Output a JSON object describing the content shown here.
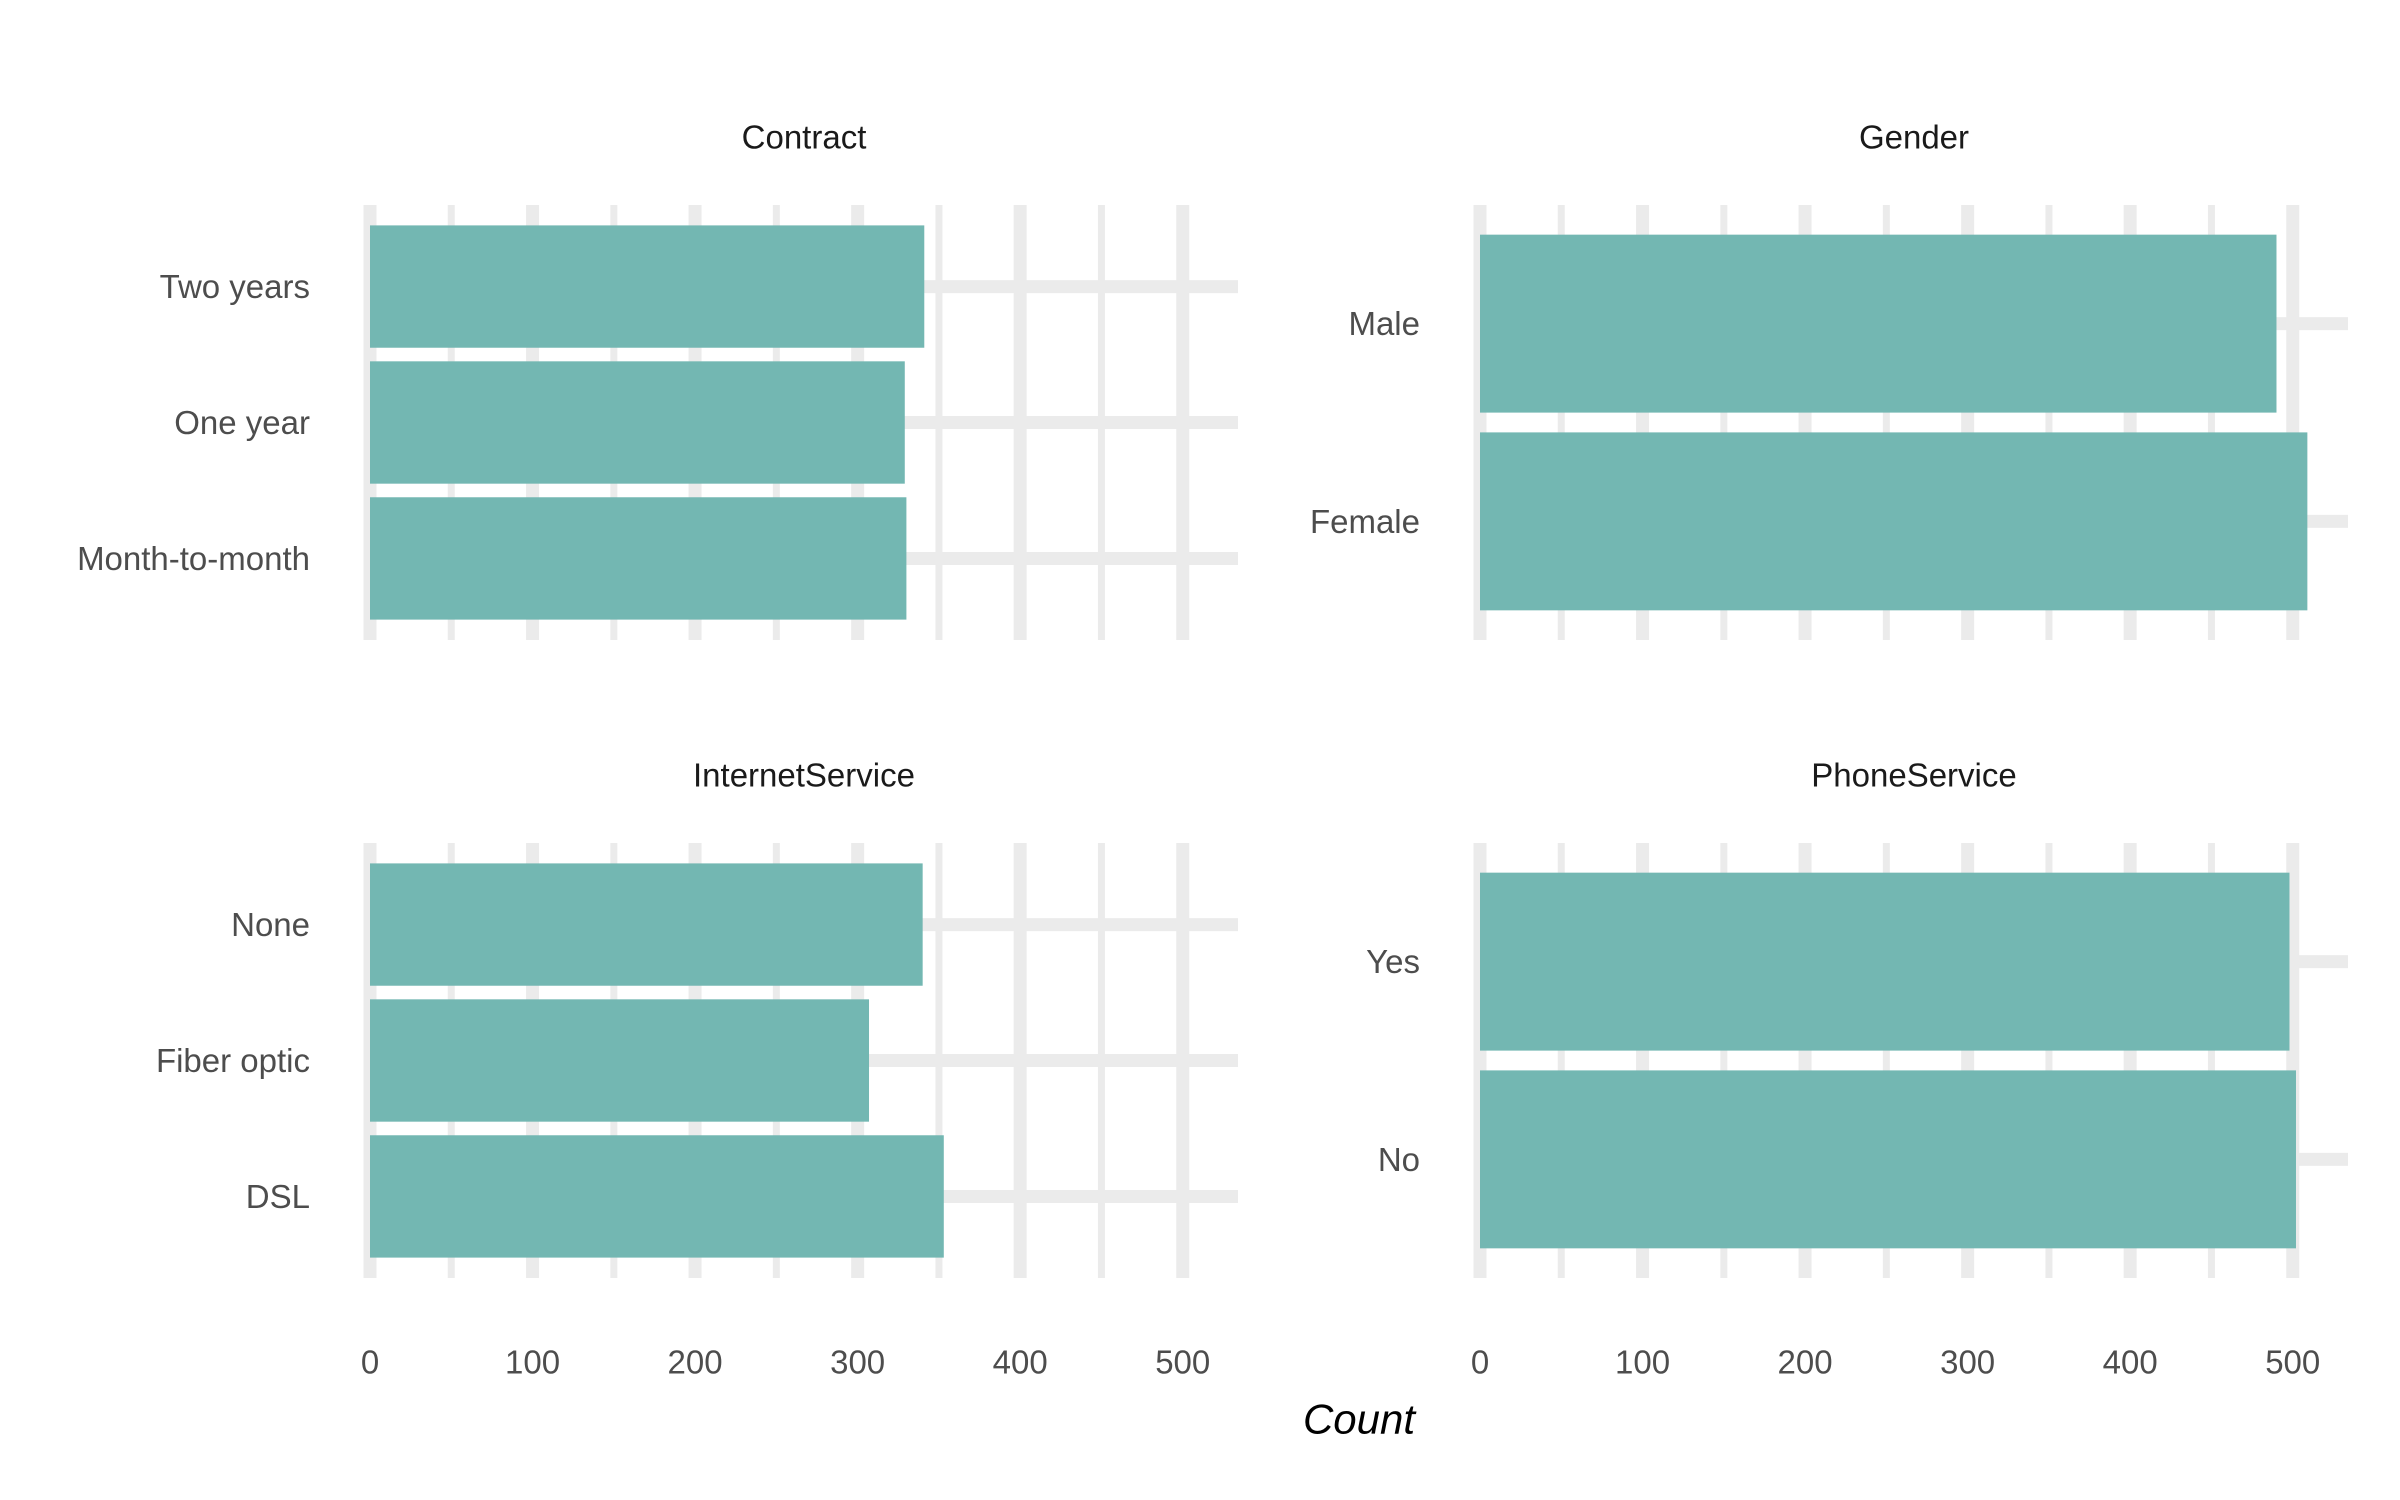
{
  "chart_data": {
    "type": "bar",
    "orientation": "horizontal",
    "layout": "facet-grid-2x2",
    "xlabel": "Count",
    "ylabel": "",
    "xlim": [
      0,
      534
    ],
    "x_ticks": [
      0,
      100,
      200,
      300,
      400,
      500
    ],
    "grid": true,
    "legend": "none",
    "bar_color": "#73b7b2",
    "grid_color": "#ebebeb",
    "panels": [
      {
        "title": "Contract",
        "categories": [
          "Month-to-month",
          "One year",
          "Two years"
        ],
        "values": [
          330,
          329,
          341
        ]
      },
      {
        "title": "Gender",
        "categories": [
          "Female",
          "Male"
        ],
        "values": [
          509,
          490
        ]
      },
      {
        "title": "InternetService",
        "categories": [
          "DSL",
          "Fiber optic",
          "None"
        ],
        "values": [
          353,
          307,
          340
        ]
      },
      {
        "title": "PhoneService",
        "categories": [
          "No",
          "Yes"
        ],
        "values": [
          502,
          498
        ]
      }
    ]
  }
}
